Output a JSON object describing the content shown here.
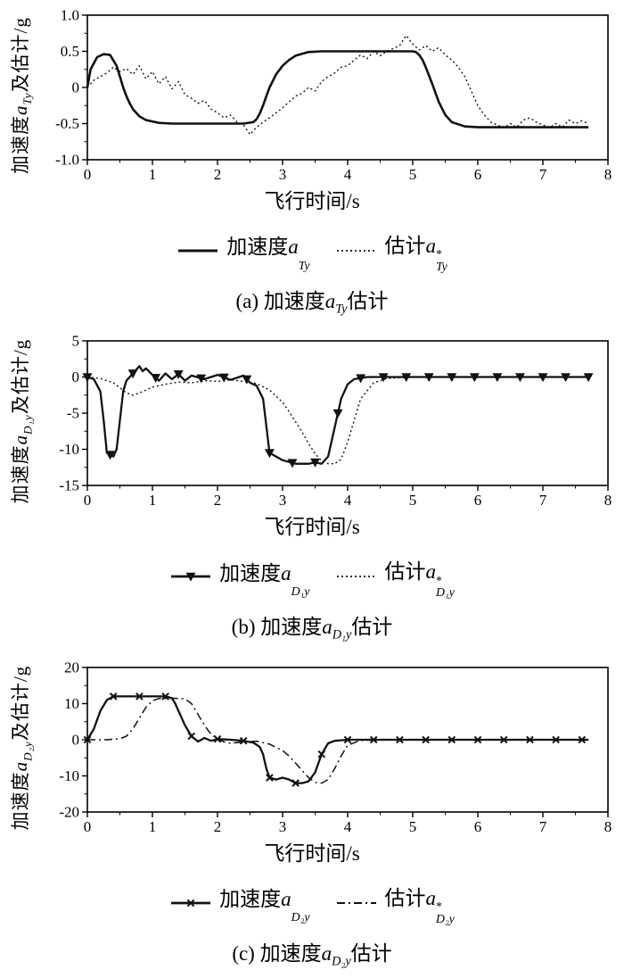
{
  "chart_data": [
    {
      "type": "line",
      "ylabel_parts": {
        "pre": "加速度",
        "var": "a",
        "sub": "Ty",
        "post": "及估计/g"
      },
      "xlabel": "飞行时间/s",
      "caption_parts": {
        "pre": "(a) 加速度",
        "var": "a",
        "sub": "Ty",
        "post": "估计"
      },
      "xlim": [
        0,
        8
      ],
      "ylim": [
        -1.0,
        1.0
      ],
      "xticks": [
        0,
        1,
        2,
        3,
        4,
        5,
        6,
        7,
        8
      ],
      "yticks": [
        1.0,
        0.5,
        0,
        -0.5,
        -1.0
      ],
      "ytick_labels": [
        "1.0",
        "0.5",
        "0",
        "-0.5",
        "-1.0"
      ],
      "grid": false,
      "legend_position": "below",
      "series": [
        {
          "label": {
            "pre": "加速度",
            "var": "a",
            "sup": "",
            "sub": "Ty"
          },
          "dash": "solid",
          "width": 2.6,
          "marker": "",
          "x": [
            0,
            0.05,
            0.15,
            0.25,
            0.35,
            0.45,
            0.5,
            0.55,
            0.6,
            0.65,
            0.7,
            0.8,
            0.9,
            1.0,
            1.1,
            1.3,
            1.6,
            2.0,
            2.4,
            2.55,
            2.6,
            2.65,
            2.7,
            2.75,
            2.8,
            2.9,
            3.0,
            3.1,
            3.2,
            3.4,
            3.6,
            4.0,
            4.5,
            5.0,
            5.05,
            5.1,
            5.15,
            5.2,
            5.3,
            5.4,
            5.5,
            5.6,
            5.8,
            6.0,
            6.5,
            7.0,
            7.5,
            7.7
          ],
          "y": [
            0,
            0.25,
            0.42,
            0.46,
            0.45,
            0.3,
            0.15,
            0.0,
            -0.12,
            -0.22,
            -0.3,
            -0.4,
            -0.45,
            -0.47,
            -0.49,
            -0.5,
            -0.5,
            -0.5,
            -0.5,
            -0.48,
            -0.44,
            -0.36,
            -0.25,
            -0.12,
            0.0,
            0.18,
            0.3,
            0.38,
            0.44,
            0.49,
            0.5,
            0.5,
            0.5,
            0.5,
            0.49,
            0.45,
            0.38,
            0.28,
            0.05,
            -0.2,
            -0.38,
            -0.48,
            -0.54,
            -0.55,
            -0.55,
            -0.55,
            -0.55,
            -0.55
          ]
        },
        {
          "label": {
            "pre": "估计",
            "var": "a",
            "sup": "*",
            "sub": "Ty"
          },
          "dash": "dotted",
          "width": 1.4,
          "marker": "",
          "x0": 0,
          "dx": 0.1,
          "y": [
            0,
            0.1,
            0.15,
            0.2,
            0.28,
            0.22,
            0.26,
            0.18,
            0.3,
            0.12,
            0.22,
            0.05,
            0.15,
            -0.02,
            0.08,
            -0.1,
            -0.15,
            -0.22,
            -0.18,
            -0.3,
            -0.35,
            -0.42,
            -0.38,
            -0.48,
            -0.52,
            -0.65,
            -0.55,
            -0.48,
            -0.42,
            -0.35,
            -0.28,
            -0.2,
            -0.12,
            -0.08,
            0.0,
            -0.05,
            0.08,
            0.15,
            0.2,
            0.28,
            0.3,
            0.38,
            0.45,
            0.4,
            0.5,
            0.44,
            0.5,
            0.54,
            0.58,
            0.72,
            0.6,
            0.52,
            0.58,
            0.5,
            0.55,
            0.45,
            0.38,
            0.28,
            0.15,
            -0.05,
            -0.25,
            -0.38,
            -0.48,
            -0.52,
            -0.56,
            -0.5,
            -0.55,
            -0.45,
            -0.42,
            -0.48,
            -0.52,
            -0.56,
            -0.5,
            -0.55,
            -0.45,
            -0.5,
            -0.46,
            -0.5
          ]
        }
      ]
    },
    {
      "type": "line",
      "ylabel_parts": {
        "pre": "加速度",
        "var": "a",
        "sub": "D₁y",
        "post": "及估计/g"
      },
      "xlabel": "飞行时间/s",
      "caption_parts": {
        "pre": "(b) 加速度",
        "var": "a",
        "sub": "D₁y",
        "post": "估计"
      },
      "xlim": [
        0,
        8
      ],
      "ylim": [
        -15,
        5
      ],
      "xticks": [
        0,
        1,
        2,
        3,
        4,
        5,
        6,
        7,
        8
      ],
      "yticks": [
        5,
        0,
        -5,
        -10,
        -15
      ],
      "ytick_labels": [
        "5",
        "0",
        "-5",
        "-10",
        "-15"
      ],
      "grid": false,
      "legend_position": "below",
      "series": [
        {
          "label": {
            "pre": "加速度",
            "var": "a",
            "sup": "",
            "sub": "D₁y"
          },
          "dash": "solid",
          "width": 2.3,
          "marker": "triangle-down",
          "marker_dx": 0.35,
          "x": [
            0,
            0.1,
            0.2,
            0.25,
            0.3,
            0.4,
            0.45,
            0.5,
            0.55,
            0.6,
            0.7,
            0.8,
            0.85,
            0.9,
            1.0,
            1.1,
            1.2,
            1.3,
            1.4,
            1.5,
            1.6,
            1.8,
            2.0,
            2.2,
            2.4,
            2.5,
            2.6,
            2.7,
            2.8,
            2.9,
            3.0,
            3.2,
            3.4,
            3.5,
            3.6,
            3.7,
            3.8,
            3.9,
            4.0,
            4.1,
            4.3,
            4.6,
            5.0,
            5.5,
            6.0,
            6.5,
            7.0,
            7.5,
            7.7
          ],
          "y": [
            0,
            -0.3,
            -2,
            -6,
            -10.5,
            -11,
            -10,
            -6,
            -2,
            -0.5,
            0.5,
            1.5,
            0.8,
            1.2,
            0.3,
            -0.5,
            0.5,
            -0.3,
            0.4,
            -0.5,
            0.2,
            -0.3,
            0.3,
            -0.4,
            0.2,
            -0.8,
            -1.2,
            -3,
            -10.5,
            -11,
            -11.5,
            -12,
            -12,
            -11.8,
            -12,
            -11,
            -7,
            -3,
            -1,
            -0.3,
            0,
            0,
            0,
            0,
            0,
            0,
            0,
            0,
            0
          ]
        },
        {
          "label": {
            "pre": "估计",
            "var": "a",
            "sup": "*",
            "sub": "D₁y"
          },
          "dash": "dotted",
          "width": 1.4,
          "marker": "",
          "x": [
            0,
            0.2,
            0.4,
            0.5,
            0.6,
            0.7,
            0.8,
            0.9,
            1.0,
            1.2,
            1.4,
            1.6,
            1.8,
            2.0,
            2.2,
            2.4,
            2.6,
            2.8,
            3.0,
            3.1,
            3.2,
            3.3,
            3.4,
            3.5,
            3.6,
            3.7,
            3.8,
            3.9,
            4.0,
            4.1,
            4.2,
            4.4,
            4.6,
            5.0,
            5.5,
            6.0,
            6.5,
            7.0,
            7.5,
            7.7
          ],
          "y": [
            0,
            -0.2,
            -0.8,
            -1.5,
            -2.2,
            -2.5,
            -2.2,
            -1.8,
            -1.4,
            -1.0,
            -0.7,
            -0.8,
            -0.5,
            -0.6,
            -0.4,
            -0.6,
            -0.9,
            -1.8,
            -3.5,
            -4.8,
            -6.2,
            -7.6,
            -9.2,
            -10.6,
            -11.6,
            -12,
            -12,
            -11.4,
            -9,
            -6,
            -3,
            -0.8,
            -0.2,
            0,
            0,
            0,
            0,
            0,
            0,
            0
          ]
        }
      ]
    },
    {
      "type": "line",
      "ylabel_parts": {
        "pre": "加速度",
        "var": "a",
        "sub": "D₂y",
        "post": "及估计/g"
      },
      "xlabel": "飞行时间/s",
      "caption_parts": {
        "pre": "(c) 加速度",
        "var": "a",
        "sub": "D₂y",
        "post": "估计"
      },
      "xlim": [
        0,
        8
      ],
      "ylim": [
        -20,
        20
      ],
      "xticks": [
        0,
        1,
        2,
        3,
        4,
        5,
        6,
        7,
        8
      ],
      "yticks": [
        20,
        10,
        0,
        -10,
        -20
      ],
      "ytick_labels": [
        "20",
        "10",
        "0",
        "-10",
        "-20"
      ],
      "grid": false,
      "legend_position": "below",
      "series": [
        {
          "label": {
            "pre": "加速度",
            "var": "a",
            "sup": "",
            "sub": "D₂y"
          },
          "dash": "solid",
          "width": 2.3,
          "marker": "x",
          "marker_dx": 0.4,
          "x": [
            0,
            0.1,
            0.2,
            0.3,
            0.4,
            0.6,
            0.8,
            1.0,
            1.2,
            1.3,
            1.35,
            1.4,
            1.5,
            1.6,
            1.7,
            1.8,
            1.9,
            2.0,
            2.2,
            2.4,
            2.55,
            2.65,
            2.7,
            2.75,
            2.8,
            2.9,
            3.0,
            3.1,
            3.2,
            3.3,
            3.4,
            3.5,
            3.6,
            3.7,
            3.8,
            4.0,
            4.5,
            5.0,
            5.5,
            6.0,
            6.5,
            7.0,
            7.5,
            7.7
          ],
          "y": [
            0,
            3,
            8,
            11,
            12,
            12,
            12,
            12,
            12,
            11.5,
            10,
            8,
            4,
            1,
            -0.5,
            0.5,
            -0.3,
            0.2,
            0,
            -0.3,
            -0.8,
            -2,
            -4,
            -8,
            -10.5,
            -11,
            -10.5,
            -11,
            -12,
            -12,
            -11.5,
            -9,
            -4,
            -1,
            -0.3,
            0,
            0,
            0,
            0,
            0,
            0,
            0,
            0,
            0
          ]
        },
        {
          "label": {
            "pre": "估计",
            "var": "a",
            "sup": "*",
            "sub": "D₂y"
          },
          "dash": "dashdot",
          "width": 1.5,
          "marker": "",
          "x": [
            0,
            0.3,
            0.5,
            0.6,
            0.7,
            0.8,
            0.9,
            1.0,
            1.1,
            1.3,
            1.5,
            1.6,
            1.7,
            1.8,
            1.9,
            2.0,
            2.1,
            2.2,
            2.4,
            2.6,
            2.8,
            3.0,
            3.1,
            3.2,
            3.3,
            3.4,
            3.5,
            3.6,
            3.7,
            3.8,
            3.9,
            4.0,
            4.2,
            4.5,
            5.0,
            5.5,
            6.0,
            6.5,
            7.0,
            7.5,
            7.7
          ],
          "y": [
            0,
            0,
            0.3,
            1,
            3,
            6,
            9,
            10.8,
            11.4,
            11.5,
            11.3,
            10,
            7,
            4,
            1.5,
            0.3,
            -0.6,
            -1,
            -0.6,
            -0.4,
            -1.2,
            -3,
            -4.5,
            -6.5,
            -8.5,
            -10.5,
            -11.8,
            -12,
            -11,
            -8,
            -4.5,
            -1.5,
            -0.2,
            0,
            0,
            0,
            0,
            0,
            0,
            0,
            0
          ]
        }
      ]
    }
  ],
  "colors": {
    "line": "#111111",
    "frame": "#000000"
  }
}
